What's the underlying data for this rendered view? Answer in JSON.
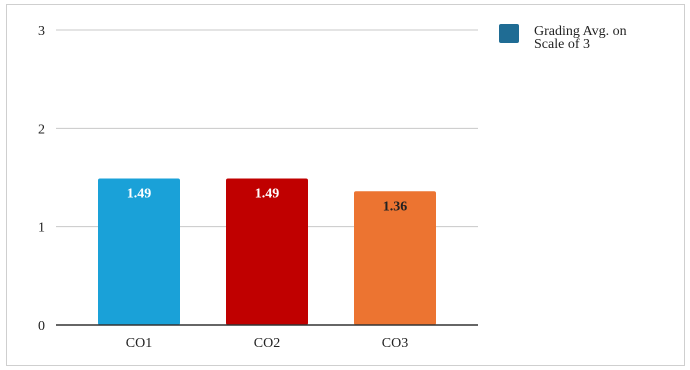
{
  "chart_data": {
    "type": "bar",
    "categories": [
      "CO1",
      "CO2",
      "CO3"
    ],
    "series": [
      {
        "name": "Grading Avg. on Scale of 3",
        "values": [
          1.49,
          1.49,
          1.36
        ],
        "data_labels": [
          "1.49",
          "1.49",
          "1.36"
        ]
      }
    ],
    "bar_colors": [
      "#1aa1d8",
      "#c00000",
      "#ec7431"
    ],
    "data_label_colors": [
      "#ffffff",
      "#ffffff",
      "#222222"
    ],
    "legend_color": "#1f6c94",
    "legend_lines": [
      "Grading Avg. on",
      "Scale of 3"
    ],
    "legend_position": "right",
    "ylim": [
      0,
      3
    ],
    "y_ticks": [
      "0",
      "1",
      "2",
      "3"
    ],
    "grid": true,
    "title": "",
    "xlabel": "",
    "ylabel": ""
  }
}
